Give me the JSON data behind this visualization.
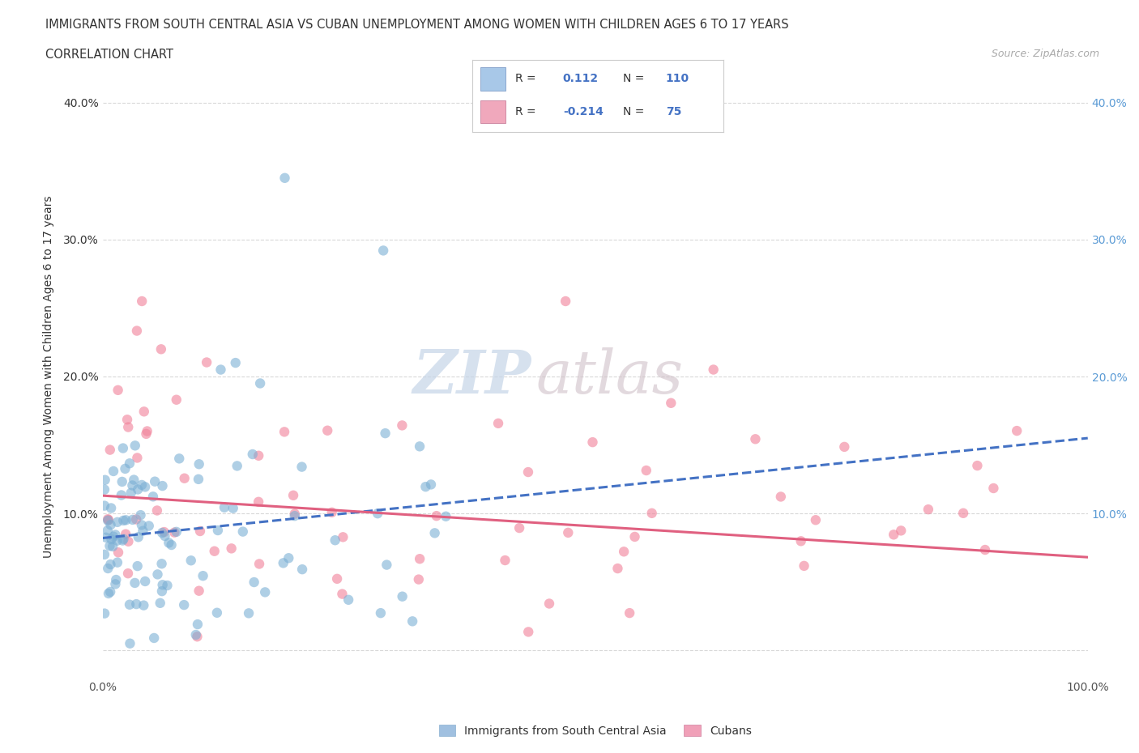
{
  "title_line1": "IMMIGRANTS FROM SOUTH CENTRAL ASIA VS CUBAN UNEMPLOYMENT AMONG WOMEN WITH CHILDREN AGES 6 TO 17 YEARS",
  "title_line2": "CORRELATION CHART",
  "source": "Source: ZipAtlas.com",
  "ylabel": "Unemployment Among Women with Children Ages 6 to 17 years",
  "xlim": [
    0.0,
    1.0
  ],
  "ylim": [
    -0.02,
    0.42
  ],
  "xticks": [
    0.0,
    0.2,
    0.4,
    0.6,
    0.8,
    1.0
  ],
  "xtick_labels": [
    "0.0%",
    "",
    "",
    "",
    "",
    "100.0%"
  ],
  "yticks": [
    0.0,
    0.1,
    0.2,
    0.3,
    0.4
  ],
  "ytick_labels": [
    "",
    "10.0%",
    "20.0%",
    "30.0%",
    "40.0%"
  ],
  "R_blue": 0.112,
  "N_blue": 110,
  "R_pink": -0.214,
  "N_pink": 75,
  "color_blue": "#7bafd4",
  "color_pink": "#f08098",
  "color_blue_line": "#4472c4",
  "color_pink_line": "#e06080",
  "watermark_color": "#c8d8e8",
  "watermark_color2": "#d0c8c8",
  "background_color": "#ffffff",
  "grid_color": "#d8d8d8",
  "legend_label_blue": "Immigrants from South Central Asia",
  "legend_label_pink": "Cubans",
  "legend_color_blue": "#a0c0e0",
  "legend_color_pink": "#f0a0b8",
  "blue_line_start_y": 0.082,
  "blue_line_end_y": 0.155,
  "pink_line_start_y": 0.113,
  "pink_line_end_y": 0.068
}
